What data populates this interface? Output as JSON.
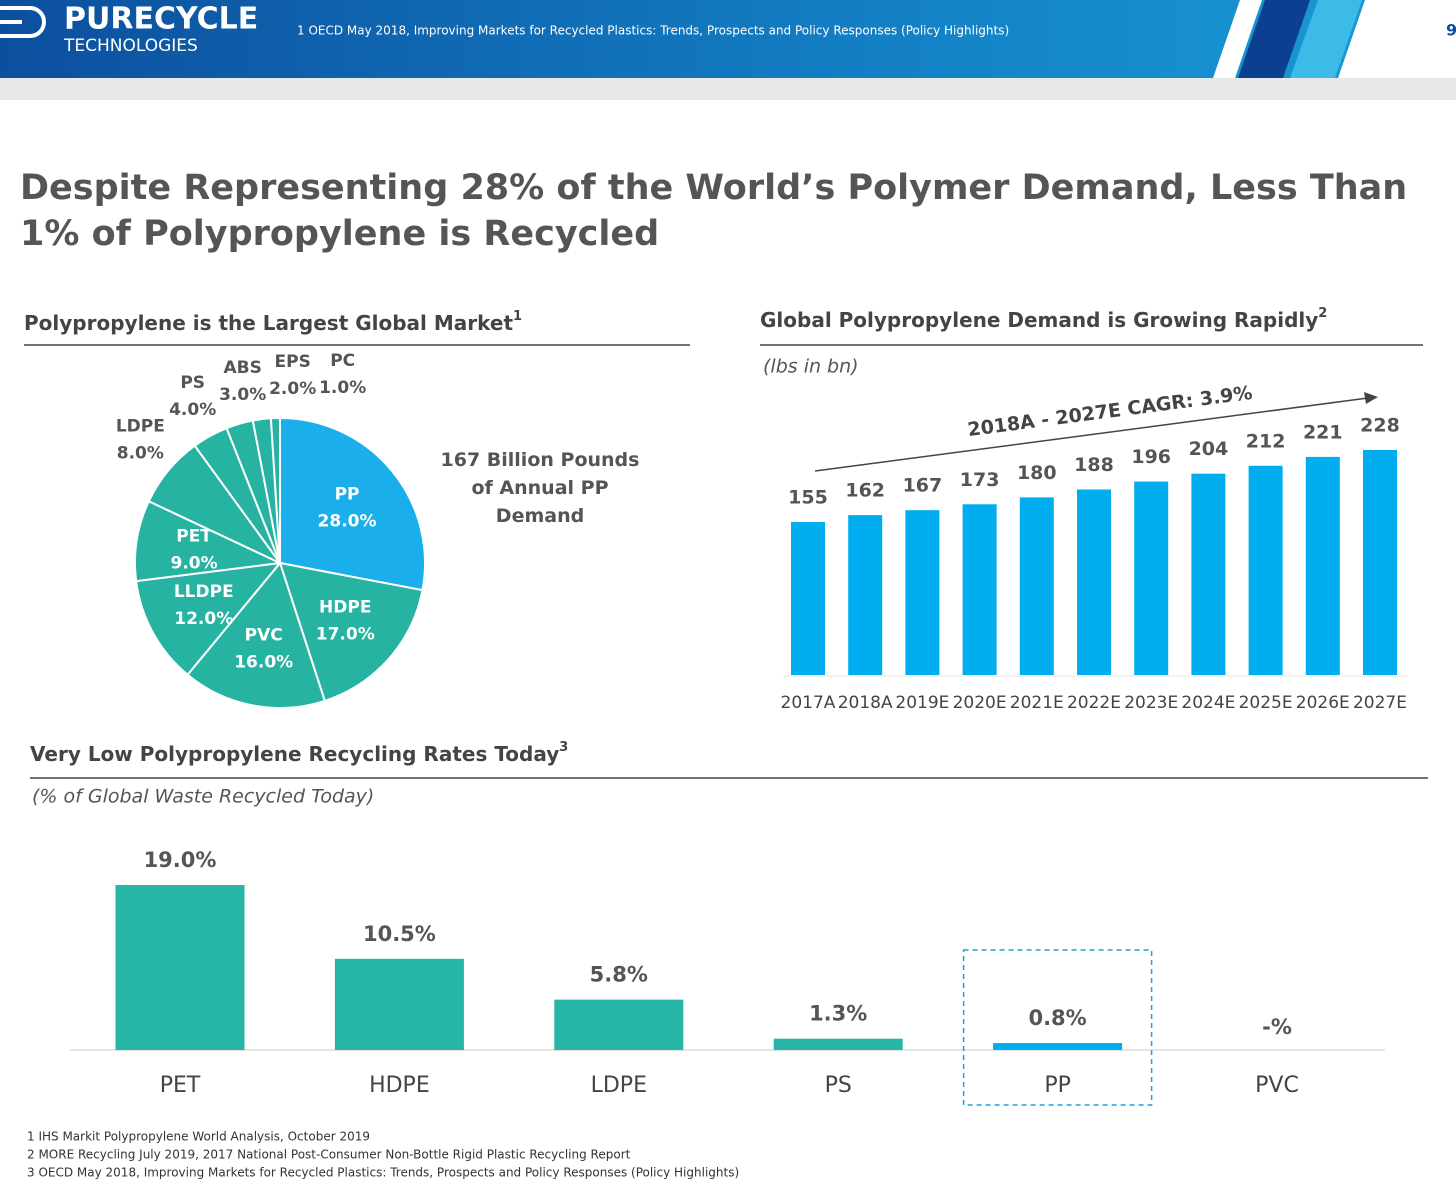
{
  "header": {
    "logo_top": "PURECYCLE",
    "logo_bottom": "TECHNOLOGIES",
    "note": "1 OECD May 2018, Improving Markets for Recycled Plastics: Trends, Prospects and Policy Responses (Policy Highlights)",
    "page": "9"
  },
  "title": "Despite Representing 28% of the World’s Polymer Demand, Less Than 1% of Polypropylene is Recycled",
  "chart_data": [
    {
      "type": "pie",
      "title": "Polypropylene is the Largest Global Market",
      "footnote": "1",
      "categories": [
        "PP",
        "HDPE",
        "PVC",
        "LLDPE",
        "PET",
        "LDPE",
        "PS",
        "ABS",
        "EPS",
        "PC"
      ],
      "values": [
        28,
        17,
        16,
        12,
        9,
        8,
        4,
        3,
        2,
        1
      ],
      "value_labels": [
        "28.0%",
        "17.0%",
        "16.0%",
        "12.0%",
        "9.0%",
        "8.0%",
        "4.0%",
        "3.0%",
        "2.0%",
        "1.0%"
      ],
      "colors": [
        "#1aaeea",
        "#26b3a2",
        "#26b3a2",
        "#26b3a2",
        "#26b3a2",
        "#26b3a2",
        "#26b3a2",
        "#26b3a2",
        "#26b3a2",
        "#26b3a2"
      ],
      "annotation": "167 Billion Pounds of Annual PP Demand"
    },
    {
      "type": "bar",
      "title": "Global Polypropylene Demand is Growing Rapidly",
      "footnote": "2",
      "subtitle": "(lbs in bn)",
      "categories": [
        "2017A",
        "2018A",
        "2019E",
        "2020E",
        "2021E",
        "2022E",
        "2023E",
        "2024E",
        "2025E",
        "2026E",
        "2027E"
      ],
      "values": [
        155,
        162,
        167,
        173,
        180,
        188,
        196,
        204,
        212,
        221,
        228
      ],
      "color": "#00aeef",
      "annotation": "2018A - 2027E CAGR: 3.9%"
    },
    {
      "type": "bar",
      "title": "Very Low Polypropylene Recycling Rates Today",
      "footnote": "3",
      "subtitle": "(% of Global Waste Recycled Today)",
      "categories": [
        "PET",
        "HDPE",
        "LDPE",
        "PS",
        "PP",
        "PVC"
      ],
      "values": [
        19.0,
        10.5,
        5.8,
        1.3,
        0.8,
        null
      ],
      "value_labels": [
        "19.0%",
        "10.5%",
        "5.8%",
        "1.3%",
        "0.8%",
        "-%"
      ],
      "colors": [
        "#26b5a6",
        "#26b5a6",
        "#26b5a6",
        "#26b5a6",
        "#00aeef",
        "#26b5a6"
      ],
      "highlight": "PP"
    }
  ],
  "footnotes": [
    "1 IHS Markit Polypropylene World Analysis, October 2019",
    "2 MORE Recycling July 2019, 2017 National Post-Consumer Non-Bottle Rigid Plastic Recycling Report",
    "3 OECD May 2018, Improving Markets for Recycled Plastics: Trends, Prospects and Policy Responses (Policy Highlights)"
  ]
}
